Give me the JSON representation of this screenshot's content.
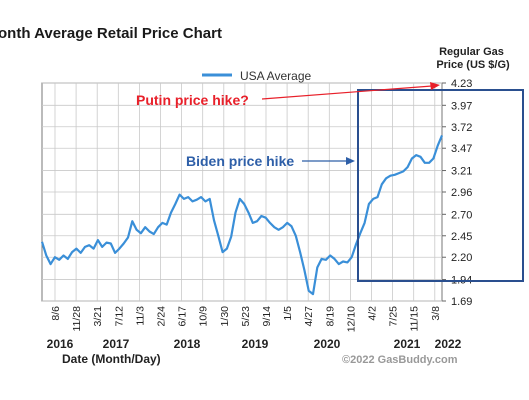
{
  "chart_data": {
    "type": "line",
    "title": "onth Average Retail Price Chart",
    "legend": "USA Average",
    "ylabel": "Regular Gas\nPrice (US $/G)",
    "xlabel": "Date (Month/Day)",
    "copyright": "©2022 GasBuddy.com",
    "ylim": [
      1.69,
      4.23
    ],
    "y_ticks": [
      "4.23",
      "3.97",
      "3.72",
      "3.47",
      "3.21",
      "2.96",
      "2.70",
      "2.45",
      "2.20",
      "1.94",
      "1.69"
    ],
    "x_ticks": [
      "8/6",
      "11/28",
      "3/21",
      "7/12",
      "11/3",
      "2/24",
      "6/17",
      "10/9",
      "1/30",
      "5/23",
      "9/14",
      "1/5",
      "4/27",
      "8/19",
      "12/10",
      "4/2",
      "7/25",
      "11/15",
      "3/8"
    ],
    "years": [
      "2016",
      "2017",
      "2018",
      "2019",
      "2020",
      "2021",
      "2022"
    ],
    "series": [
      {
        "name": "USA Average",
        "color": "#3a8fd8",
        "values": [
          2.38,
          2.22,
          2.12,
          2.2,
          2.17,
          2.22,
          2.18,
          2.26,
          2.3,
          2.25,
          2.32,
          2.34,
          2.3,
          2.4,
          2.32,
          2.37,
          2.36,
          2.25,
          2.3,
          2.36,
          2.43,
          2.62,
          2.52,
          2.48,
          2.55,
          2.5,
          2.47,
          2.55,
          2.6,
          2.58,
          2.72,
          2.82,
          2.93,
          2.88,
          2.9,
          2.85,
          2.87,
          2.9,
          2.85,
          2.88,
          2.63,
          2.45,
          2.26,
          2.3,
          2.44,
          2.72,
          2.88,
          2.82,
          2.72,
          2.6,
          2.62,
          2.68,
          2.66,
          2.6,
          2.55,
          2.52,
          2.55,
          2.6,
          2.56,
          2.45,
          2.26,
          2.05,
          1.81,
          1.77,
          2.08,
          2.18,
          2.17,
          2.22,
          2.18,
          2.12,
          2.15,
          2.14,
          2.2,
          2.35,
          2.48,
          2.6,
          2.82,
          2.88,
          2.9,
          3.05,
          3.12,
          3.15,
          3.16,
          3.18,
          3.2,
          3.25,
          3.35,
          3.39,
          3.37,
          3.3,
          3.3,
          3.35,
          3.5,
          3.62
        ]
      }
    ]
  },
  "annotations": {
    "putin": "Putin price hike?",
    "biden": "Biden price hike"
  },
  "colors": {
    "putin": "#e8202a",
    "biden": "#2e5fa8",
    "box": "#2a4f8f"
  }
}
